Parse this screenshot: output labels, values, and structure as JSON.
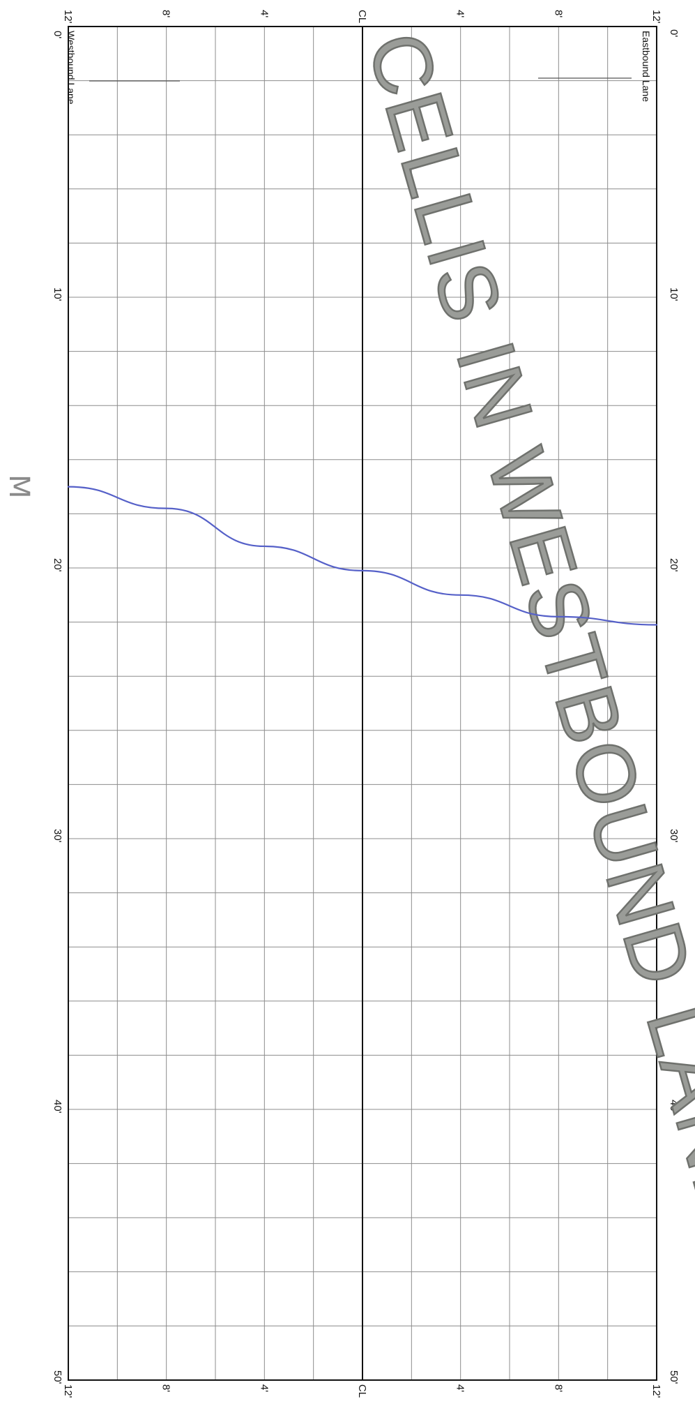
{
  "lanes": {
    "left_label": "Westbound Lane",
    "right_label": "Eastbound Lane"
  },
  "across_ticks": [
    "12'",
    "8'",
    "4'",
    "CL",
    "4'",
    "8'",
    "12'"
  ],
  "along_ticks": [
    "0'",
    "10'",
    "20'",
    "30'",
    "40'",
    "50'"
  ],
  "stamp_text": "CELLIS IN WESTBOUND LANE",
  "handwritten_mark": "M",
  "crack_line": {
    "color": "#5560c8",
    "points": [
      {
        "offset": "12' Westbound",
        "station_ft": 17.0
      },
      {
        "offset": "8' Westbound",
        "station_ft": 17.8
      },
      {
        "offset": "4' Westbound",
        "station_ft": 19.2
      },
      {
        "offset": "CL",
        "station_ft": 20.1
      },
      {
        "offset": "4' Eastbound",
        "station_ft": 21.0
      },
      {
        "offset": "8' Eastbound",
        "station_ft": 21.8
      },
      {
        "offset": "12' Eastbound",
        "station_ft": 22.1
      }
    ]
  },
  "colors": {
    "grid": "#8c8c8c",
    "border": "#111111",
    "stamp_fill": "#9a9c98",
    "stamp_outline": "#6f716d",
    "ink": "#5560c8"
  }
}
